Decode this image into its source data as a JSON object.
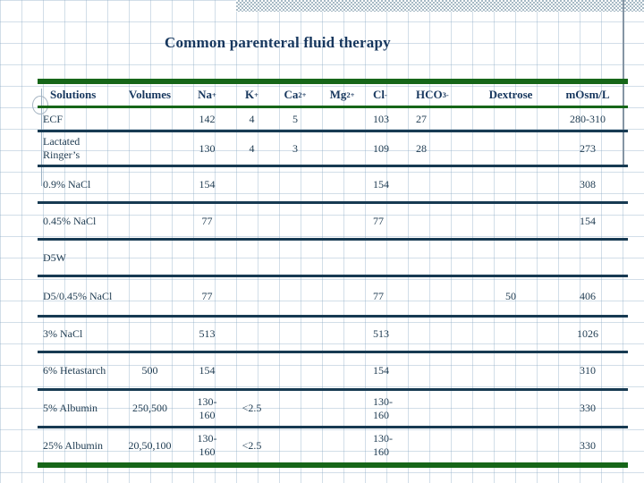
{
  "title": "Common parenteral fluid therapy",
  "colors": {
    "accent_green": "#166618",
    "separator_navy": "#173a52",
    "heading_navy": "#17375e",
    "cell_text": "#1d3a50",
    "grid_blue_gray": "#88a8c4",
    "dither_band_gray": "#a7bac5"
  },
  "table": {
    "columns": [
      {
        "label": "Solutions"
      },
      {
        "label": "Volumes"
      },
      {
        "label": "Na",
        "sup": "+"
      },
      {
        "label": "K",
        "sup": "+"
      },
      {
        "label": "Ca",
        "sup": "2+"
      },
      {
        "label": "Mg",
        "sup": "2+"
      },
      {
        "label": "Cl",
        "sup": "-"
      },
      {
        "label": "HCO",
        "sub": "3",
        "sup": "-"
      },
      {
        "label": "Dextrose"
      },
      {
        "label": "mOsm/L"
      }
    ],
    "rows": [
      [
        "ECF",
        "",
        "142",
        "4",
        "5",
        "",
        "103",
        "27",
        "",
        "280-310"
      ],
      [
        "Lactated Ringer’s",
        "",
        "130",
        "4",
        "3",
        "",
        "109",
        "28",
        "",
        "273"
      ],
      [
        "0.9% NaCl",
        "",
        "154",
        "",
        "",
        "",
        "154",
        "",
        "",
        "308"
      ],
      [
        "0.45% NaCl",
        "",
        "77",
        "",
        "",
        "",
        "77",
        "",
        "",
        "154"
      ],
      [
        "D5W",
        "",
        "",
        "",
        "",
        "",
        "",
        "",
        "",
        ""
      ],
      [
        "D5/0.45% NaCl",
        "",
        "77",
        "",
        "",
        "",
        "77",
        "",
        "50",
        "406"
      ],
      [
        "3% NaCl",
        "",
        "513",
        "",
        "",
        "",
        "513",
        "",
        "",
        "1026"
      ],
      [
        "6% Hetastarch",
        "500",
        "154",
        "",
        "",
        "",
        "154",
        "",
        "",
        "310"
      ],
      [
        "5% Albumin",
        "250,500",
        "130-\n160",
        "<2.5",
        "",
        "",
        "130-\n160",
        "",
        "",
        "330"
      ],
      [
        "25% Albumin",
        "20,50,100",
        "130-\n160",
        "<2.5",
        "",
        "",
        "130-\n160",
        "",
        "",
        "330"
      ]
    ]
  }
}
